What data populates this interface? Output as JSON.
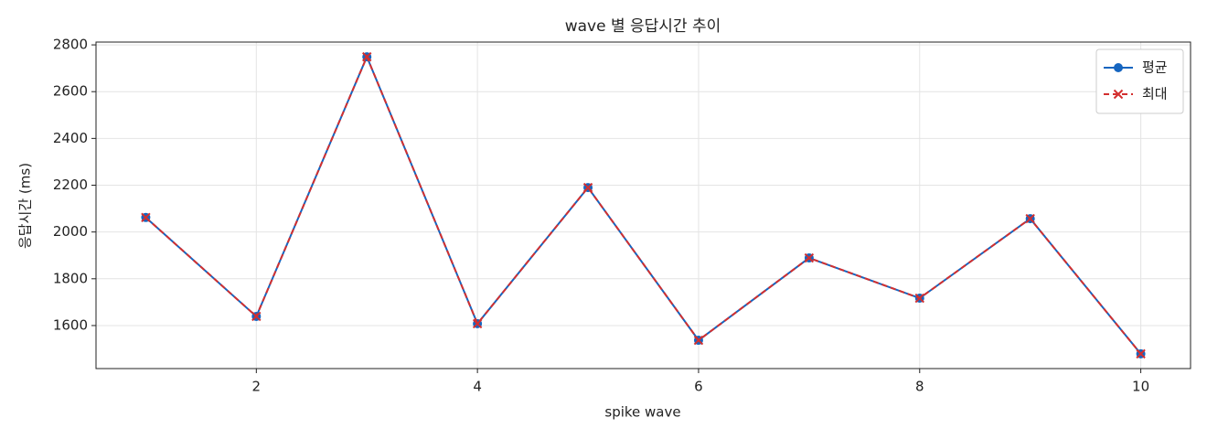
{
  "chart_data": {
    "type": "line",
    "title": "wave 별 응답시간 추이",
    "x_label": "spike wave",
    "y_label": "응답시간 (ms)",
    "x": [
      1,
      2,
      3,
      4,
      5,
      6,
      7,
      8,
      9,
      10
    ],
    "series": [
      {
        "name": "평균",
        "color": "#1565c0",
        "marker": "circle",
        "dash": "solid",
        "values": [
          2062,
          1639,
          2749,
          1608,
          2190,
          1537,
          1889,
          1717,
          2057,
          1479
        ]
      },
      {
        "name": "최대",
        "color": "#d32f2f",
        "marker": "x",
        "dash": "dashed",
        "values": [
          2062,
          1639,
          2749,
          1608,
          2190,
          1537,
          1889,
          1717,
          2057,
          1479
        ]
      }
    ],
    "xlim": [
      0.55,
      10.45
    ],
    "xticks": [
      2,
      4,
      6,
      8,
      10
    ],
    "ylim": [
      1416,
      2812
    ],
    "yticks": [
      1600,
      1800,
      2000,
      2200,
      2400,
      2600,
      2800
    ],
    "grid": true,
    "legend": "upper-right"
  }
}
